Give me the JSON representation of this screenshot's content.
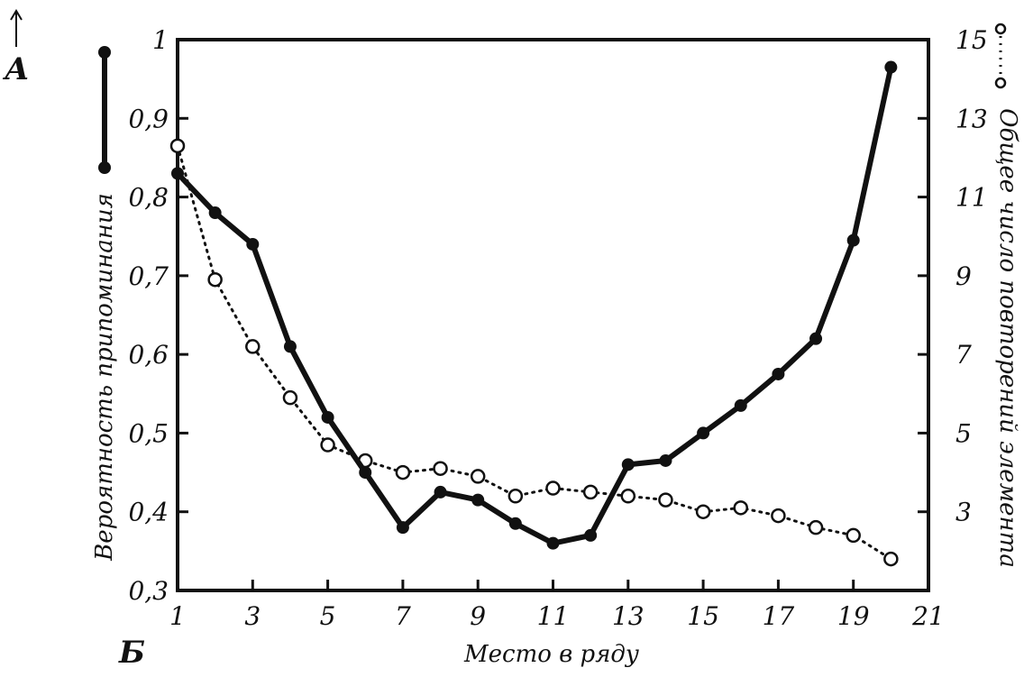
{
  "chart_data": {
    "type": "line",
    "corner_label_top": "А",
    "corner_label_bottom": "Б",
    "xlabel": "Место в ряду",
    "ylabel_left": "Вероятность припоминания",
    "ylabel_right": "Общее число повторений элемента",
    "xlim": [
      1,
      21
    ],
    "ylim_left": [
      0.3,
      1.0
    ],
    "ylim_right": [
      1,
      15
    ],
    "x_ticks": [
      "1",
      "3",
      "5",
      "7",
      "9",
      "11",
      "13",
      "15",
      "17",
      "19",
      "21"
    ],
    "y_left_ticks": [
      "0,3",
      "0,4",
      "0,5",
      "0,6",
      "0,7",
      "0,8",
      "0,9",
      "1"
    ],
    "y_right_ticks": [
      "3",
      "5",
      "7",
      "9",
      "11",
      "13",
      "15"
    ],
    "grid": false,
    "series": [
      {
        "axis": "left",
        "style": "solid-filled",
        "x": [
          1,
          2,
          3,
          4,
          5,
          6,
          7,
          8,
          9,
          10,
          11,
          12,
          13,
          14,
          15,
          16,
          17,
          18,
          19,
          20
        ],
        "values": [
          0.83,
          0.78,
          0.74,
          0.61,
          0.52,
          0.45,
          0.38,
          0.425,
          0.415,
          0.385,
          0.36,
          0.37,
          0.46,
          0.465,
          0.5,
          0.535,
          0.575,
          0.62,
          0.745,
          0.965
        ]
      },
      {
        "axis": "right",
        "style": "dotted-open",
        "x": [
          1,
          2,
          3,
          4,
          5,
          6,
          7,
          8,
          9,
          10,
          11,
          12,
          13,
          14,
          15,
          16,
          17,
          18,
          19,
          20
        ],
        "values": [
          12.3,
          8.9,
          7.2,
          5.9,
          4.7,
          4.3,
          4.0,
          4.1,
          3.9,
          3.4,
          3.6,
          3.5,
          3.4,
          3.3,
          3.0,
          3.1,
          2.9,
          2.6,
          2.4,
          1.8
        ]
      }
    ]
  }
}
